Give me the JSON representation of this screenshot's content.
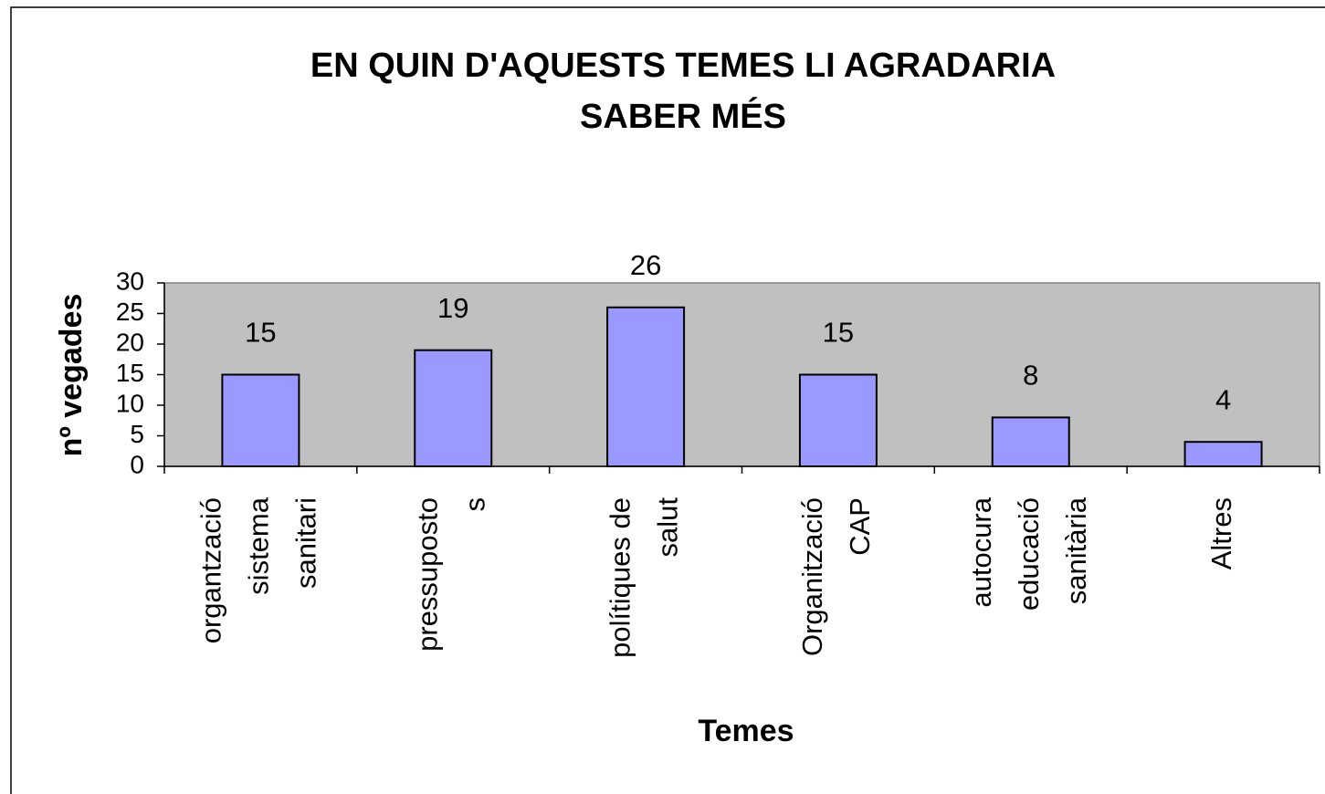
{
  "chart_data": {
    "type": "bar",
    "title": [
      "EN QUIN D'AQUESTS TEMES LI AGRADARIA",
      "SABER MÉS"
    ],
    "x_label": "Temes",
    "y_label": "nº vegades",
    "categories": [
      [
        "organtzació",
        "sistema",
        "sanitari"
      ],
      [
        "pressuposto",
        "s"
      ],
      [
        "polítiques de",
        "salut"
      ],
      [
        "Organització",
        "CAP"
      ],
      [
        "autocura",
        "educació",
        "sanitària"
      ],
      [
        "Altres"
      ]
    ],
    "values": [
      15,
      19,
      26,
      15,
      8,
      4
    ],
    "color": "#9999ff",
    "plot_background": "#c0c0c0",
    "ylim": [
      0,
      30
    ],
    "yticks": [
      0,
      5,
      10,
      15,
      20,
      25,
      30
    ],
    "grid": false
  }
}
